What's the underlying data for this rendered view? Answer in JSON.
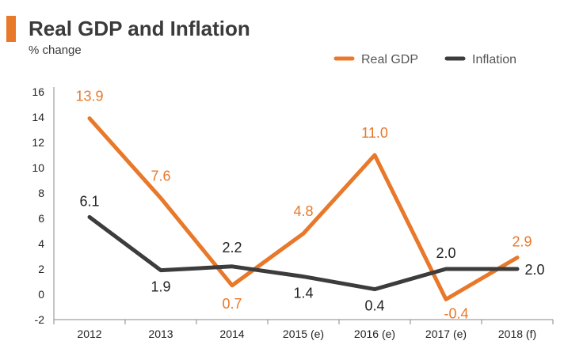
{
  "header": {
    "title": "Real GDP and Inflation",
    "unit_label": "% change"
  },
  "colors": {
    "accent": "#E8782A",
    "real_gdp": "#E8782A",
    "inflation": "#3C3C3C",
    "axis": "#888888",
    "text": "#222222"
  },
  "chart_data": {
    "type": "line",
    "title": "Real GDP and Inflation",
    "ylabel": "% change",
    "xlabel": "",
    "ylim": [
      -2,
      16
    ],
    "yticks": [
      -2,
      0,
      2,
      4,
      6,
      8,
      10,
      12,
      14,
      16
    ],
    "categories": [
      "2012",
      "2013",
      "2014",
      "2015 (e)",
      "2016 (e)",
      "2017 (e)",
      "2018 (f)"
    ],
    "grid": false,
    "legend_position": "top-right",
    "series": [
      {
        "name": "Real GDP",
        "color": "#E8782A",
        "values": [
          13.9,
          7.6,
          0.7,
          4.8,
          11.0,
          -0.4,
          2.9
        ],
        "labels": [
          "13.9",
          "7.6",
          "0.7",
          "4.8",
          "11.0",
          "-0.4",
          "2.9"
        ]
      },
      {
        "name": "Inflation",
        "color": "#3C3C3C",
        "values": [
          6.1,
          1.9,
          2.2,
          1.4,
          0.4,
          2.0,
          2.0
        ],
        "labels": [
          "6.1",
          "1.9",
          "2.2",
          "1.4",
          "0.4",
          "2.0",
          "2.0"
        ]
      }
    ]
  }
}
